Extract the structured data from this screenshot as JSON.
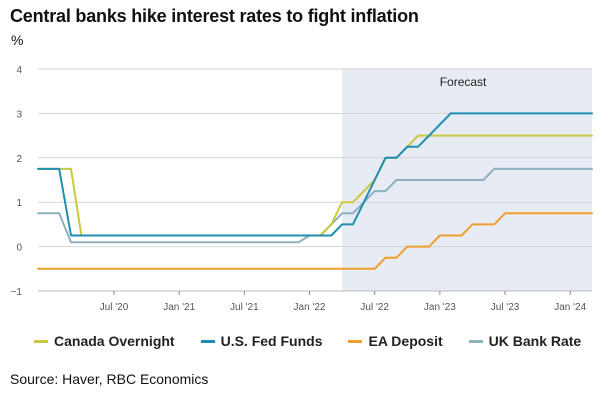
{
  "title": "Central banks hike interest rates to fight inflation",
  "unit": "%",
  "source": "Source: Haver, RBC Economics",
  "chart_data": {
    "type": "line",
    "title": "Central banks hike interest rates to fight inflation",
    "ylabel": "%",
    "ylim": [
      -1,
      4
    ],
    "yticks": [
      4,
      3,
      2,
      1,
      0,
      -1
    ],
    "xlim": [
      2019.917,
      2024.167
    ],
    "xticks": [
      {
        "label": "Jul '20",
        "x": 2020.5
      },
      {
        "label": "Jan '21",
        "x": 2021.0
      },
      {
        "label": "Jul '21",
        "x": 2021.5
      },
      {
        "label": "Jan '22",
        "x": 2022.0
      },
      {
        "label": "Jul '22",
        "x": 2022.5
      },
      {
        "label": "Jan '23",
        "x": 2023.0
      },
      {
        "label": "Jul '23",
        "x": 2023.5
      },
      {
        "label": "Jan '24",
        "x": 2024.0
      }
    ],
    "forecast": {
      "label": "Forecast",
      "start": 2022.25,
      "end": 2024.167
    },
    "series": [
      {
        "name": "Canada Overnight",
        "color": "#c9c93f",
        "points": [
          [
            2019.917,
            1.75
          ],
          [
            2020.0,
            1.75
          ],
          [
            2020.17,
            1.75
          ],
          [
            2020.25,
            0.25
          ],
          [
            2022.083,
            0.25
          ],
          [
            2022.167,
            0.5
          ],
          [
            2022.25,
            1.0
          ],
          [
            2022.333,
            1.0
          ],
          [
            2022.5,
            1.5
          ],
          [
            2022.583,
            2.0
          ],
          [
            2022.667,
            2.0
          ],
          [
            2022.75,
            2.25
          ],
          [
            2022.833,
            2.5
          ],
          [
            2024.167,
            2.5
          ]
        ]
      },
      {
        "name": "U.S. Fed Funds",
        "color": "#1f8fb0",
        "points": [
          [
            2019.917,
            1.75
          ],
          [
            2020.0,
            1.75
          ],
          [
            2020.08,
            1.75
          ],
          [
            2020.17,
            0.25
          ],
          [
            2022.083,
            0.25
          ],
          [
            2022.167,
            0.25
          ],
          [
            2022.25,
            0.5
          ],
          [
            2022.333,
            0.5
          ],
          [
            2022.417,
            1.0
          ],
          [
            2022.5,
            1.5
          ],
          [
            2022.583,
            2.0
          ],
          [
            2022.667,
            2.0
          ],
          [
            2022.75,
            2.25
          ],
          [
            2022.833,
            2.25
          ],
          [
            2022.917,
            2.5
          ],
          [
            2023.0,
            2.75
          ],
          [
            2023.083,
            3.0
          ],
          [
            2024.167,
            3.0
          ]
        ]
      },
      {
        "name": "EA Deposit",
        "color": "#f0a02a",
        "points": [
          [
            2019.917,
            -0.5
          ],
          [
            2022.417,
            -0.5
          ],
          [
            2022.5,
            -0.5
          ],
          [
            2022.583,
            -0.25
          ],
          [
            2022.667,
            -0.25
          ],
          [
            2022.75,
            0.0
          ],
          [
            2022.833,
            0.0
          ],
          [
            2022.917,
            0.0
          ],
          [
            2023.0,
            0.25
          ],
          [
            2023.167,
            0.25
          ],
          [
            2023.25,
            0.5
          ],
          [
            2023.417,
            0.5
          ],
          [
            2023.5,
            0.75
          ],
          [
            2024.167,
            0.75
          ]
        ]
      },
      {
        "name": "UK Bank Rate",
        "color": "#8fb0bf",
        "points": [
          [
            2019.917,
            0.75
          ],
          [
            2020.0,
            0.75
          ],
          [
            2020.08,
            0.75
          ],
          [
            2020.17,
            0.1
          ],
          [
            2021.917,
            0.1
          ],
          [
            2022.0,
            0.25
          ],
          [
            2022.083,
            0.25
          ],
          [
            2022.167,
            0.5
          ],
          [
            2022.25,
            0.75
          ],
          [
            2022.333,
            0.75
          ],
          [
            2022.417,
            1.0
          ],
          [
            2022.5,
            1.25
          ],
          [
            2022.583,
            1.25
          ],
          [
            2022.667,
            1.5
          ],
          [
            2022.75,
            1.5
          ],
          [
            2023.333,
            1.5
          ],
          [
            2023.417,
            1.75
          ],
          [
            2024.167,
            1.75
          ]
        ]
      }
    ]
  }
}
